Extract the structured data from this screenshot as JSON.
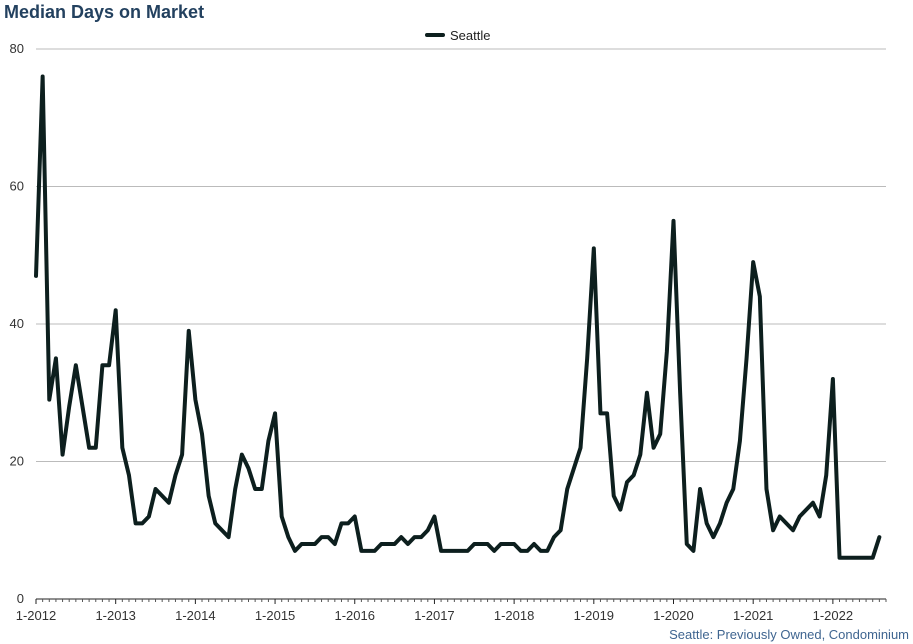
{
  "title": "Median Days on Market",
  "footnote": "Seattle: Previously Owned, Condominium",
  "colors": {
    "line": "#0d1f1e",
    "grid": "#bbbbbb",
    "title": "#23415f",
    "footnote": "#3f6590"
  },
  "chart_data": {
    "type": "line",
    "title": "Median Days on Market",
    "xlabel": "",
    "ylabel": "",
    "ylim": [
      0,
      80
    ],
    "yticks": [
      0,
      20,
      40,
      60,
      80
    ],
    "xticks": [
      "1-2012",
      "1-2013",
      "1-2014",
      "1-2015",
      "1-2016",
      "1-2017",
      "1-2018",
      "1-2019",
      "1-2020",
      "1-2021",
      "1-2022"
    ],
    "x_start": "1-2012",
    "x_end": "7-2022",
    "grid": true,
    "legend": "top-center",
    "series": [
      {
        "name": "Seattle",
        "values": [
          47,
          76,
          29,
          35,
          21,
          28,
          34,
          28,
          22,
          22,
          34,
          34,
          42,
          22,
          18,
          11,
          11,
          12,
          16,
          15,
          14,
          18,
          21,
          39,
          29,
          24,
          15,
          11,
          10,
          9,
          16,
          21,
          19,
          16,
          16,
          23,
          27,
          12,
          9,
          7,
          8,
          8,
          8,
          9,
          9,
          8,
          11,
          11,
          12,
          7,
          7,
          7,
          8,
          8,
          8,
          9,
          8,
          9,
          9,
          10,
          12,
          7,
          7,
          7,
          7,
          7,
          8,
          8,
          8,
          7,
          8,
          8,
          8,
          7,
          7,
          8,
          7,
          7,
          9,
          10,
          16,
          19,
          22,
          35,
          51,
          27,
          27,
          15,
          13,
          17,
          18,
          21,
          30,
          22,
          24,
          36,
          55,
          30,
          8,
          7,
          16,
          11,
          9,
          11,
          14,
          16,
          23,
          35,
          49,
          44,
          16,
          10,
          12,
          11,
          10,
          12,
          13,
          14,
          12,
          18,
          32,
          6,
          6,
          6,
          6,
          6,
          6,
          9
        ]
      }
    ]
  }
}
